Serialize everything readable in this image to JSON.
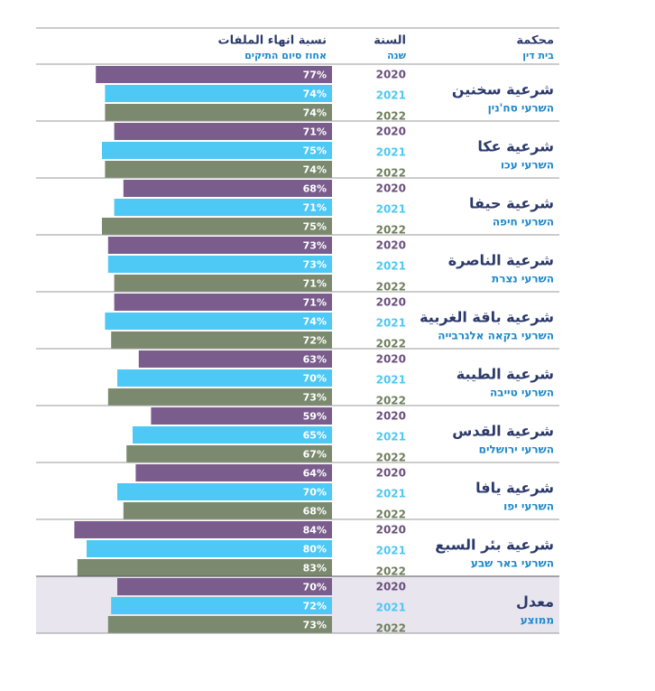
{
  "header": {
    "court": "محكمة",
    "court_he": "בית דין",
    "year": "السنة",
    "year_he": "שנה",
    "rate": "نسبة انهاء الملفات",
    "rate_he": "אחוז סיום התיקים"
  },
  "years": [
    "2020",
    "2021",
    "2022"
  ],
  "colors": {
    "bars": [
      "#7a5d8d",
      "#4ec8f4",
      "#7b8a6e"
    ],
    "year_text": [
      "#6b4f7c",
      "#4ec8f4",
      "#6f7f5c"
    ]
  },
  "rows": [
    {
      "name": "شرعية سخنين",
      "name_he": "השרעי סח'נין",
      "values": [
        77,
        74,
        74
      ],
      "value_labels": [
        "77%",
        "74%",
        "74%"
      ]
    },
    {
      "name": "شرعية عكا",
      "name_he": "השרעי עכו",
      "values": [
        71,
        75,
        74
      ],
      "value_labels": [
        "71%",
        "75%",
        "74%"
      ]
    },
    {
      "name": "شرعية حيفا",
      "name_he": "השרעי חיפה",
      "values": [
        68,
        71,
        75
      ],
      "value_labels": [
        "68%",
        "71%",
        "75%"
      ]
    },
    {
      "name": "شرعية الناصرة",
      "name_he": "השרעי נצרת",
      "values": [
        73,
        73,
        71
      ],
      "value_labels": [
        "73%",
        "73%",
        "71%"
      ]
    },
    {
      "name": "شرعية باقة الغربية",
      "name_he": "השרעי בקאה אלגרבייה",
      "values": [
        71,
        74,
        72
      ],
      "value_labels": [
        "71%",
        "74%",
        "72%"
      ]
    },
    {
      "name": "شرعية الطيبة",
      "name_he": "השרעי טייבה",
      "values": [
        63,
        70,
        73
      ],
      "value_labels": [
        "63%",
        "70%",
        "73%"
      ]
    },
    {
      "name": "شرعية القدس",
      "name_he": "השרעי ירושלים",
      "values": [
        59,
        65,
        67
      ],
      "value_labels": [
        "59%",
        "65%",
        "67%"
      ]
    },
    {
      "name": "شرعية يافا",
      "name_he": "השרעי יפו",
      "values": [
        64,
        70,
        68
      ],
      "value_labels": [
        "64%",
        "70%",
        "68%"
      ]
    },
    {
      "name": "شرعية بئر السبع",
      "name_he": "השרעי באר שבע",
      "values": [
        84,
        80,
        83
      ],
      "value_labels": [
        "84%",
        "80%",
        "83%"
      ]
    },
    {
      "name": "معدل",
      "name_he": "ממוצע",
      "values": [
        70,
        72,
        73
      ],
      "value_labels": [
        "70%",
        "72%",
        "73%"
      ]
    }
  ]
}
